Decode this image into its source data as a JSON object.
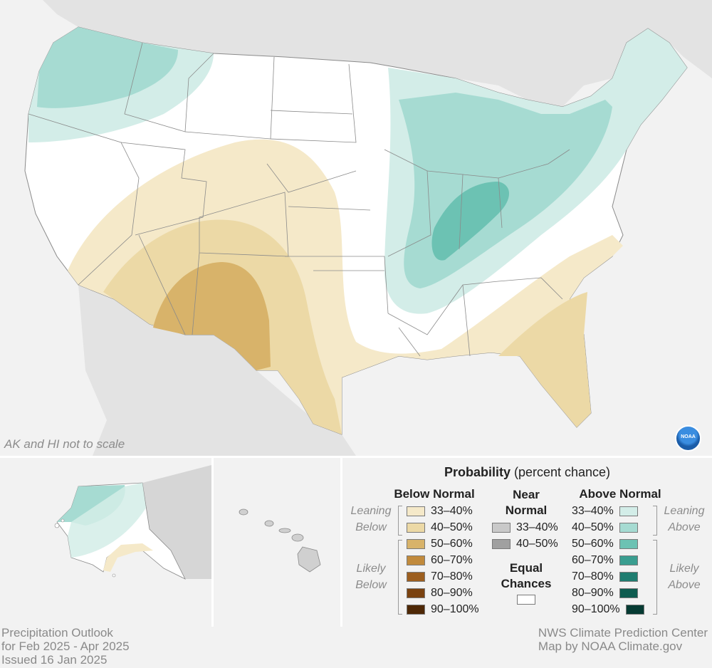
{
  "map": {
    "scale_note": "AK and HI not to scale",
    "logo_text": "NOAA"
  },
  "legend": {
    "title_bold": "Probability",
    "title_rest": " (percent chance)",
    "below_normal": {
      "heading": "Below Normal",
      "leaning_label": [
        "Leaning",
        "Below"
      ],
      "likely_label": [
        "Likely",
        "Below"
      ],
      "items": [
        {
          "label": "33–40%",
          "color": "#f5e9c9"
        },
        {
          "label": "40–50%",
          "color": "#ecd9a6"
        },
        {
          "label": "50–60%",
          "color": "#d8b36a"
        },
        {
          "label": "60–70%",
          "color": "#c18a3c"
        },
        {
          "label": "70–80%",
          "color": "#9c5e1f"
        },
        {
          "label": "80–90%",
          "color": "#7a4210"
        },
        {
          "label": "90–100%",
          "color": "#4e2806"
        }
      ]
    },
    "near_normal": {
      "heading": [
        "Near",
        "Normal"
      ],
      "items": [
        {
          "label": "33–40%",
          "color": "#c9c9c9"
        },
        {
          "label": "40–50%",
          "color": "#a0a0a0"
        }
      ]
    },
    "equal_chances": {
      "heading": [
        "Equal",
        "Chances"
      ],
      "color": "#ffffff"
    },
    "above_normal": {
      "heading": "Above Normal",
      "leaning_label": [
        "Leaning",
        "Above"
      ],
      "likely_label": [
        "Likely",
        "Above"
      ],
      "items": [
        {
          "label": "33–40%",
          "color": "#d3ede8"
        },
        {
          "label": "40–50%",
          "color": "#a6dbd2"
        },
        {
          "label": "50–60%",
          "color": "#6cc2b3"
        },
        {
          "label": "60–70%",
          "color": "#3a9e90"
        },
        {
          "label": "70–80%",
          "color": "#1f7d70"
        },
        {
          "label": "80–90%",
          "color": "#0e5c50"
        },
        {
          "label": "90–100%",
          "color": "#063b33"
        }
      ]
    }
  },
  "footer": {
    "left": [
      "Precipitation Outlook",
      "for Feb 2025 - Apr 2025",
      "Issued 16 Jan 2025"
    ],
    "right": [
      "NWS Climate Prediction Center",
      "Map by NOAA Climate.gov"
    ]
  },
  "colors": {
    "background": "#f2f2f2",
    "land_other": "#e3e3e3",
    "state_lines": "#8a8a8a"
  }
}
